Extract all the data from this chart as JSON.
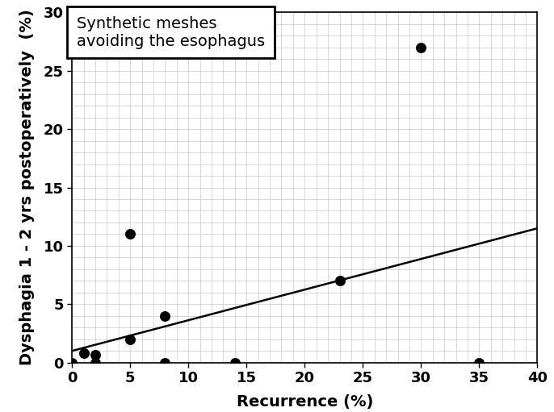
{
  "scatter_x": [
    0,
    1,
    2,
    2,
    5,
    5,
    8,
    8,
    14,
    23,
    30,
    35
  ],
  "scatter_y": [
    0,
    0.8,
    0.7,
    0,
    11,
    2,
    0,
    4,
    0,
    7,
    27,
    0
  ],
  "line_x": [
    0,
    40
  ],
  "line_y": [
    1.0,
    11.5
  ],
  "xlabel": "Recurrence (%)",
  "ylabel": "Dysphagia 1 - 2 yrs postoperatively  (%)",
  "annotation": "Synthetic meshes\navoiding the esophagus",
  "xlim": [
    0,
    40
  ],
  "ylim": [
    0,
    30
  ],
  "xticks": [
    0,
    5,
    10,
    15,
    20,
    25,
    30,
    35,
    40
  ],
  "yticks": [
    0,
    5,
    10,
    15,
    20,
    25,
    30
  ],
  "marker_color": "#000000",
  "line_color": "#000000",
  "bg_color": "#ffffff",
  "grid_color": "#c8c8c8",
  "marker_size": 70,
  "annotation_fontsize": 14,
  "axis_label_fontsize": 14,
  "tick_fontsize": 13
}
